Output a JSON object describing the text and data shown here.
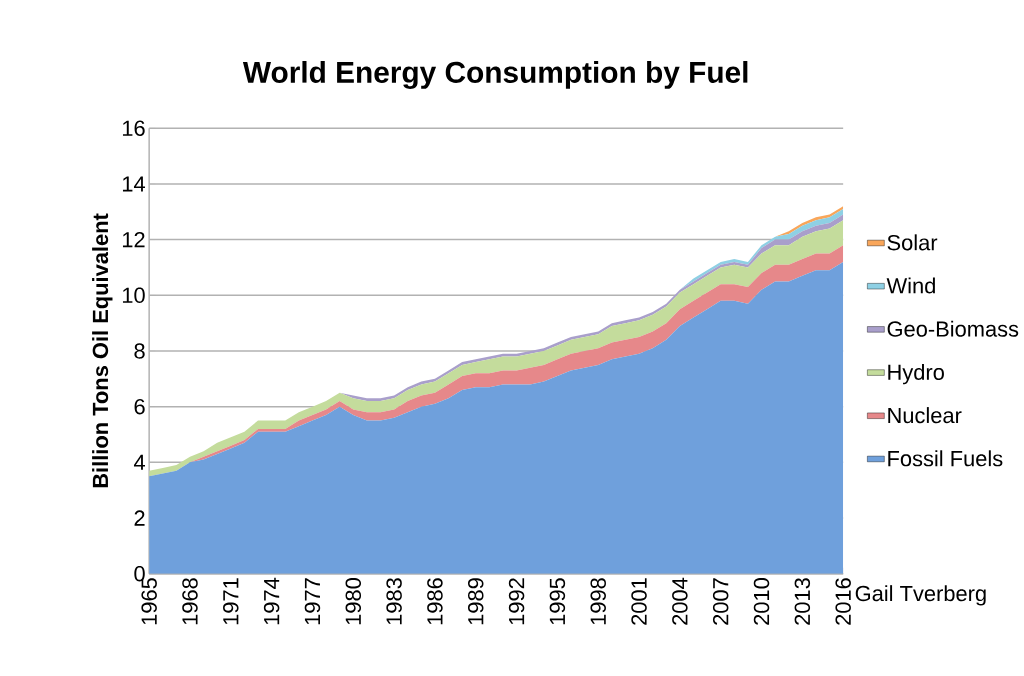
{
  "chart_data": {
    "type": "area",
    "title": "World Energy Consumption by Fuel",
    "ylabel": "Billion Tons Oil Equivalent",
    "x": [
      1965,
      1966,
      1967,
      1968,
      1969,
      1970,
      1971,
      1972,
      1973,
      1974,
      1975,
      1976,
      1977,
      1978,
      1979,
      1980,
      1981,
      1982,
      1983,
      1984,
      1985,
      1986,
      1987,
      1988,
      1989,
      1990,
      1991,
      1992,
      1993,
      1994,
      1995,
      1996,
      1997,
      1998,
      1999,
      2000,
      2001,
      2002,
      2003,
      2004,
      2005,
      2006,
      2007,
      2008,
      2009,
      2010,
      2011,
      2012,
      2013,
      2014,
      2015,
      2016
    ],
    "stacked": true,
    "series": [
      {
        "name": "Fossil Fuels",
        "color": "#6fa0dc",
        "values": [
          3.5,
          3.6,
          3.7,
          4.0,
          4.1,
          4.3,
          4.5,
          4.7,
          5.1,
          5.1,
          5.1,
          5.3,
          5.5,
          5.7,
          6.0,
          5.7,
          5.5,
          5.5,
          5.6,
          5.8,
          6.0,
          6.1,
          6.3,
          6.6,
          6.7,
          6.7,
          6.8,
          6.8,
          6.8,
          6.9,
          7.1,
          7.3,
          7.4,
          7.5,
          7.7,
          7.8,
          7.9,
          8.1,
          8.4,
          8.9,
          9.2,
          9.5,
          9.8,
          9.8,
          9.7,
          10.2,
          10.5,
          10.5,
          10.7,
          10.9,
          10.9,
          11.2
        ]
      },
      {
        "name": "Nuclear",
        "color": "#e6888a",
        "values": [
          0.0,
          0.0,
          0.0,
          0.0,
          0.1,
          0.1,
          0.1,
          0.1,
          0.1,
          0.1,
          0.1,
          0.2,
          0.2,
          0.2,
          0.2,
          0.2,
          0.3,
          0.3,
          0.3,
          0.4,
          0.4,
          0.4,
          0.5,
          0.5,
          0.5,
          0.5,
          0.5,
          0.5,
          0.6,
          0.6,
          0.6,
          0.6,
          0.6,
          0.6,
          0.6,
          0.6,
          0.6,
          0.6,
          0.6,
          0.6,
          0.6,
          0.6,
          0.6,
          0.6,
          0.6,
          0.6,
          0.6,
          0.6,
          0.6,
          0.6,
          0.6,
          0.6
        ]
      },
      {
        "name": "Hydro",
        "color": "#c4dc9c",
        "values": [
          0.2,
          0.2,
          0.2,
          0.2,
          0.2,
          0.3,
          0.3,
          0.3,
          0.3,
          0.3,
          0.3,
          0.3,
          0.3,
          0.3,
          0.3,
          0.4,
          0.4,
          0.4,
          0.4,
          0.4,
          0.4,
          0.4,
          0.4,
          0.4,
          0.4,
          0.5,
          0.5,
          0.5,
          0.5,
          0.5,
          0.5,
          0.5,
          0.5,
          0.5,
          0.6,
          0.6,
          0.6,
          0.6,
          0.6,
          0.6,
          0.6,
          0.6,
          0.6,
          0.7,
          0.7,
          0.7,
          0.7,
          0.7,
          0.8,
          0.8,
          0.9,
          0.9
        ]
      },
      {
        "name": "Geo-Biomass",
        "color": "#a99fcb",
        "values": [
          0.0,
          0.0,
          0.0,
          0.0,
          0.0,
          0.0,
          0.0,
          0.0,
          0.0,
          0.0,
          0.0,
          0.0,
          0.0,
          0.0,
          0.0,
          0.1,
          0.1,
          0.1,
          0.1,
          0.1,
          0.1,
          0.1,
          0.1,
          0.1,
          0.1,
          0.1,
          0.1,
          0.1,
          0.1,
          0.1,
          0.1,
          0.1,
          0.1,
          0.1,
          0.1,
          0.1,
          0.1,
          0.1,
          0.1,
          0.1,
          0.1,
          0.1,
          0.1,
          0.1,
          0.1,
          0.2,
          0.2,
          0.2,
          0.2,
          0.2,
          0.2,
          0.2
        ]
      },
      {
        "name": "Wind",
        "color": "#8ed0e4",
        "values": [
          0.0,
          0.0,
          0.0,
          0.0,
          0.0,
          0.0,
          0.0,
          0.0,
          0.0,
          0.0,
          0.0,
          0.0,
          0.0,
          0.0,
          0.0,
          0.0,
          0.0,
          0.0,
          0.0,
          0.0,
          0.0,
          0.0,
          0.0,
          0.0,
          0.0,
          0.0,
          0.0,
          0.0,
          0.0,
          0.0,
          0.0,
          0.0,
          0.0,
          0.0,
          0.0,
          0.0,
          0.0,
          0.0,
          0.0,
          0.0,
          0.1,
          0.1,
          0.1,
          0.1,
          0.1,
          0.1,
          0.1,
          0.2,
          0.2,
          0.2,
          0.2,
          0.2
        ]
      },
      {
        "name": "Solar",
        "color": "#f9a65a",
        "values": [
          0.0,
          0.0,
          0.0,
          0.0,
          0.0,
          0.0,
          0.0,
          0.0,
          0.0,
          0.0,
          0.0,
          0.0,
          0.0,
          0.0,
          0.0,
          0.0,
          0.0,
          0.0,
          0.0,
          0.0,
          0.0,
          0.0,
          0.0,
          0.0,
          0.0,
          0.0,
          0.0,
          0.0,
          0.0,
          0.0,
          0.0,
          0.0,
          0.0,
          0.0,
          0.0,
          0.0,
          0.0,
          0.0,
          0.0,
          0.0,
          0.0,
          0.0,
          0.0,
          0.0,
          0.0,
          0.0,
          0.0,
          0.1,
          0.1,
          0.1,
          0.1,
          0.1
        ]
      }
    ],
    "xlim": [
      1965,
      2016
    ],
    "xticks": [
      1965,
      1968,
      1971,
      1974,
      1977,
      1980,
      1983,
      1986,
      1989,
      1992,
      1995,
      1998,
      2001,
      2004,
      2007,
      2010,
      2013,
      2016
    ],
    "ylim": [
      0,
      16
    ],
    "yticks": [
      0,
      2,
      4,
      6,
      8,
      10,
      12,
      14,
      16
    ],
    "grid": "y",
    "legend": "right",
    "annotations": [
      "Gail Tverberg"
    ]
  }
}
